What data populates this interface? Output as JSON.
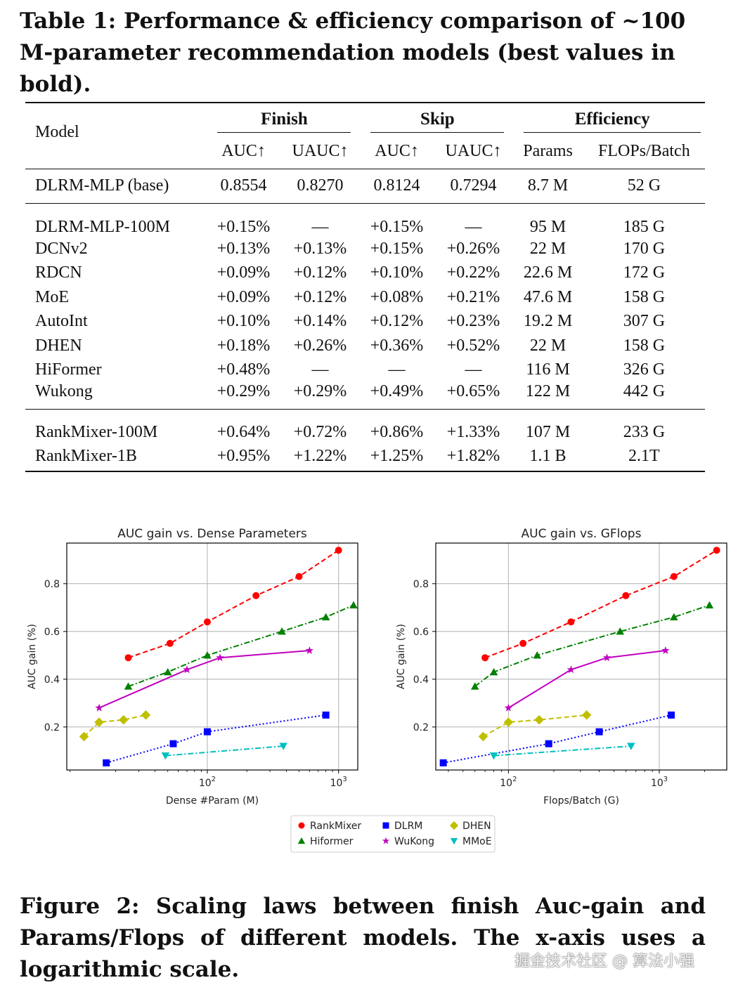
{
  "table": {
    "caption": "Table 1: Performance & efficiency comparison of ~100 M-parameter recommendation models (best values in bold).",
    "header": {
      "model": "Model",
      "groups": [
        "Finish",
        "Skip",
        "Efficiency"
      ],
      "sub": [
        "AUC↑",
        "UAUC↑",
        "AUC↑",
        "UAUC↑",
        "Params",
        "FLOPs/Batch"
      ]
    },
    "base": [
      "DLRM-MLP (base)",
      "0.8554",
      "0.8270",
      "0.8124",
      "0.7294",
      "8.7 M",
      "52 G"
    ],
    "rows": [
      [
        "DLRM-MLP-100M",
        "+0.15%",
        "—",
        "+0.15%",
        "—",
        "95 M",
        "185 G"
      ],
      [
        "DCNv2",
        "+0.13%",
        "+0.13%",
        "+0.15%",
        "+0.26%",
        "22 M",
        "170 G"
      ],
      [
        "RDCN",
        "+0.09%",
        "+0.12%",
        "+0.10%",
        "+0.22%",
        "22.6 M",
        "172 G"
      ],
      [
        "MoE",
        "+0.09%",
        "+0.12%",
        "+0.08%",
        "+0.21%",
        "47.6 M",
        "158 G"
      ],
      [
        "AutoInt",
        "+0.10%",
        "+0.14%",
        "+0.12%",
        "+0.23%",
        "19.2 M",
        "307 G"
      ],
      [
        "DHEN",
        "+0.18%",
        "+0.26%",
        "+0.36%",
        "+0.52%",
        "22 M",
        "158 G"
      ],
      [
        "HiFormer",
        "+0.48%",
        "—",
        "—",
        "—",
        "116 M",
        "326 G"
      ],
      [
        "Wukong",
        "+0.29%",
        "+0.29%",
        "+0.49%",
        "+0.65%",
        "122 M",
        "442 G"
      ]
    ],
    "ours": [
      [
        "RankMixer-100M",
        "+0.64%",
        "+0.72%",
        "+0.86%",
        "+1.33%",
        "107 M",
        "233 G"
      ],
      [
        "RankMixer-1B",
        "+0.95%",
        "+1.22%",
        "+1.25%",
        "+1.82%",
        "1.1 B",
        "2.1T"
      ]
    ]
  },
  "chart_data": [
    {
      "type": "line",
      "title": "AUC gain vs. Dense Parameters",
      "xlabel": "Dense #Param (M)",
      "ylabel": "AUC gain  (%)",
      "xscale": "log",
      "xlim": [
        8.5,
        1400
      ],
      "ylim": [
        0.02,
        0.97
      ],
      "xticks": [
        {
          "v": 100,
          "label": "10",
          "exp": "2"
        },
        {
          "v": 1000,
          "label": "10",
          "exp": "3"
        }
      ],
      "yticks": [
        0.2,
        0.4,
        0.6,
        0.8
      ],
      "series": [
        {
          "name": "RankMixer",
          "color": "#ff0000",
          "marker": "circle",
          "dash": "dashed",
          "x": [
            25,
            52,
            100,
            235,
            500,
            1000
          ],
          "y": [
            0.49,
            0.55,
            0.64,
            0.75,
            0.83,
            0.94
          ]
        },
        {
          "name": "Hiformer",
          "color": "#008000",
          "marker": "triangle-up",
          "dash": "dashdot",
          "x": [
            25,
            50,
            100,
            370,
            800,
            1300
          ],
          "y": [
            0.37,
            0.43,
            0.5,
            0.6,
            0.66,
            0.71
          ]
        },
        {
          "name": "DLRM",
          "color": "#0000ff",
          "marker": "square",
          "dash": "dotted",
          "x": [
            17,
            55,
            100,
            800
          ],
          "y": [
            0.05,
            0.13,
            0.18,
            0.25
          ]
        },
        {
          "name": "WuKong",
          "color": "#bf00bf",
          "marker": "star",
          "dash": "solid",
          "x": [
            15,
            70,
            125,
            600
          ],
          "y": [
            0.28,
            0.44,
            0.49,
            0.52
          ]
        },
        {
          "name": "DHEN",
          "color": "#bfbf00",
          "marker": "diamond",
          "dash": "dashed",
          "x": [
            11.5,
            15,
            23,
            34
          ],
          "y": [
            0.16,
            0.22,
            0.23,
            0.25
          ]
        },
        {
          "name": "MMoE",
          "color": "#00bfbf",
          "marker": "triangle-down",
          "dash": "dashdot",
          "x": [
            48,
            380
          ],
          "y": [
            0.08,
            0.12
          ]
        }
      ]
    },
    {
      "type": "line",
      "title": "AUC gain vs. GFlops",
      "xlabel": "Flops/Batch (G)",
      "ylabel": "AUC gain  (%)",
      "xscale": "log",
      "xlim": [
        33,
        2800
      ],
      "ylim": [
        0.02,
        0.97
      ],
      "xticks": [
        {
          "v": 100,
          "label": "10",
          "exp": "2"
        },
        {
          "v": 1000,
          "label": "10",
          "exp": "3"
        }
      ],
      "yticks": [
        0.2,
        0.4,
        0.6,
        0.8
      ],
      "series": [
        {
          "name": "RankMixer",
          "color": "#ff0000",
          "marker": "circle",
          "dash": "dashed",
          "x": [
            70,
            125,
            260,
            600,
            1250,
            2400
          ],
          "y": [
            0.49,
            0.55,
            0.64,
            0.75,
            0.83,
            0.94
          ]
        },
        {
          "name": "Hiformer",
          "color": "#008000",
          "marker": "triangle-up",
          "dash": "dashdot",
          "x": [
            60,
            80,
            155,
            550,
            1250,
            2150
          ],
          "y": [
            0.37,
            0.43,
            0.5,
            0.6,
            0.66,
            0.71
          ]
        },
        {
          "name": "DLRM",
          "color": "#0000ff",
          "marker": "square",
          "dash": "dotted",
          "x": [
            37,
            185,
            400,
            1200
          ],
          "y": [
            0.05,
            0.13,
            0.18,
            0.25
          ]
        },
        {
          "name": "WuKong",
          "color": "#bf00bf",
          "marker": "star",
          "dash": "solid",
          "x": [
            100,
            260,
            450,
            1100
          ],
          "y": [
            0.28,
            0.44,
            0.49,
            0.52
          ]
        },
        {
          "name": "DHEN",
          "color": "#bfbf00",
          "marker": "diamond",
          "dash": "dashed",
          "x": [
            68,
            100,
            160,
            330
          ],
          "y": [
            0.16,
            0.22,
            0.23,
            0.25
          ]
        },
        {
          "name": "MMoE",
          "color": "#00bfbf",
          "marker": "triangle-down",
          "dash": "dashdot",
          "x": [
            80,
            650
          ],
          "y": [
            0.08,
            0.12
          ]
        }
      ]
    }
  ],
  "legend": {
    "placement": "bottom-center",
    "entries": [
      {
        "name": "RankMixer",
        "color": "#ff0000",
        "marker": "circle"
      },
      {
        "name": "DLRM",
        "color": "#0000ff",
        "marker": "square"
      },
      {
        "name": "DHEN",
        "color": "#bfbf00",
        "marker": "diamond"
      },
      {
        "name": "Hiformer",
        "color": "#008000",
        "marker": "triangle-up"
      },
      {
        "name": "WuKong",
        "color": "#bf00bf",
        "marker": "star"
      },
      {
        "name": "MMoE",
        "color": "#00bfbf",
        "marker": "triangle-down"
      }
    ]
  },
  "figure_caption": "Figure 2: Scaling laws between finish Auc-gain and Params/Flops of different models. The x-axis uses a logarithmic scale.",
  "watermark": "掘金技术社区 @ 算法小强"
}
